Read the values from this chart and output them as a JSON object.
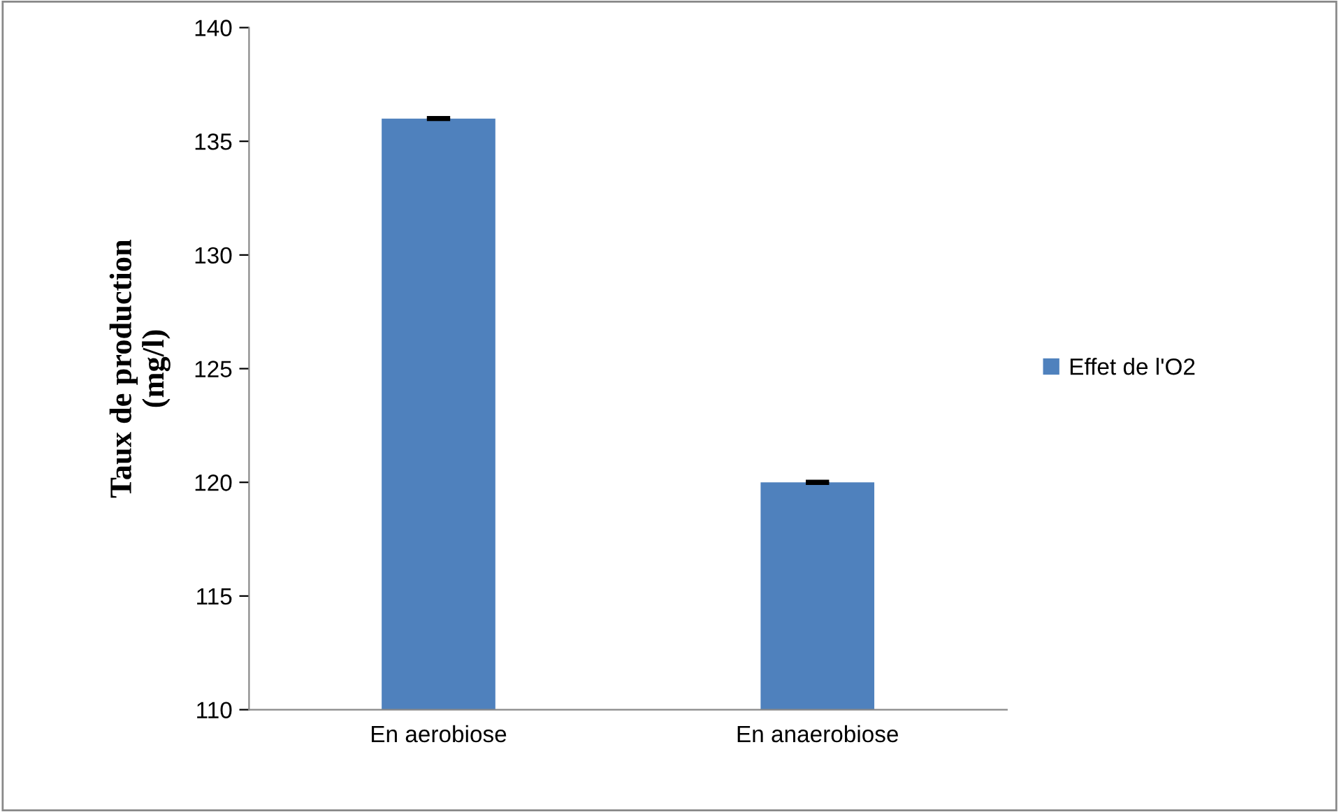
{
  "chart_data": {
    "type": "bar",
    "ylabel": "Taux de production\n(mg/l)",
    "categories": [
      "En aerobiose",
      "En anaerobiose"
    ],
    "series": [
      {
        "name": "Effet de l'O2",
        "color": "#4f81bd",
        "values": [
          136,
          120
        ],
        "errors": [
          0.05,
          0.05
        ]
      }
    ],
    "ylim": [
      110,
      140
    ],
    "yticks": [
      110,
      115,
      120,
      125,
      130,
      135,
      140
    ],
    "grid": false,
    "legend": "right"
  }
}
